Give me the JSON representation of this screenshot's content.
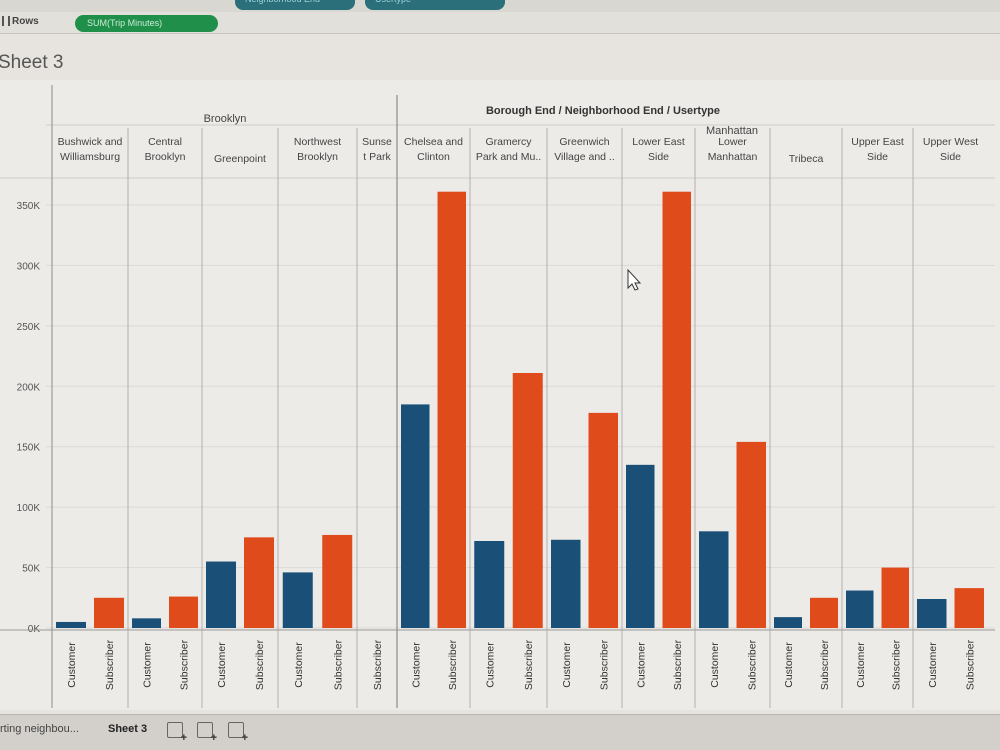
{
  "header": {
    "column_pills": [
      "Neighborhood End",
      "Usertype"
    ],
    "rows_label": "Rows",
    "rows_pill": "SUM(Trip Minutes)"
  },
  "sheet": {
    "title": "Sheet 3"
  },
  "colors": {
    "customer": "#1a4f78",
    "subscriber": "#e04b1c",
    "grid": "#dcdad6",
    "divider": "#8e8c88"
  },
  "chart_data": {
    "type": "bar",
    "title": "Borough End / Neighborhood End / Usertype",
    "ylim": [
      0,
      370000
    ],
    "yticks": [
      {
        "value": 0,
        "label": "0K"
      },
      {
        "value": 50000,
        "label": "50K"
      },
      {
        "value": 100000,
        "label": "100K"
      },
      {
        "value": 150000,
        "label": "150K"
      },
      {
        "value": 200000,
        "label": "200K"
      },
      {
        "value": 250000,
        "label": "250K"
      },
      {
        "value": 300000,
        "label": "300K"
      },
      {
        "value": 350000,
        "label": "350K"
      }
    ],
    "groups": [
      {
        "borough": "Brooklyn",
        "neighborhoods": [
          {
            "name": "Bushwick and Williamsburg",
            "lines": [
              "Bushwick and",
              "Williamsburg"
            ],
            "bars": [
              {
                "type": "Customer",
                "value": 5000
              },
              {
                "type": "Subscriber",
                "value": 25000
              }
            ]
          },
          {
            "name": "Central Brooklyn",
            "lines": [
              "Central",
              "Brooklyn"
            ],
            "bars": [
              {
                "type": "Customer",
                "value": 8000
              },
              {
                "type": "Subscriber",
                "value": 26000
              }
            ]
          },
          {
            "name": "Greenpoint",
            "lines": [
              "Greenpoint"
            ],
            "bars": [
              {
                "type": "Customer",
                "value": 55000
              },
              {
                "type": "Subscriber",
                "value": 75000
              }
            ]
          },
          {
            "name": "Northwest Brooklyn",
            "lines": [
              "Northwest",
              "Brooklyn"
            ],
            "bars": [
              {
                "type": "Customer",
                "value": 46000
              },
              {
                "type": "Subscriber",
                "value": 77000
              }
            ]
          },
          {
            "name": "Sunset Park",
            "lines": [
              "Sunse",
              "t Park"
            ],
            "bars": [
              {
                "type": "Subscriber",
                "value": 0
              }
            ]
          }
        ]
      },
      {
        "borough": "Manhattan",
        "neighborhoods": [
          {
            "name": "Chelsea and Clinton",
            "lines": [
              "Chelsea and",
              "Clinton"
            ],
            "bars": [
              {
                "type": "Customer",
                "value": 185000
              },
              {
                "type": "Subscriber",
                "value": 361000
              }
            ]
          },
          {
            "name": "Gramercy Park and Murray Hill",
            "lines": [
              "Gramercy",
              "Park and Mu.."
            ],
            "bars": [
              {
                "type": "Customer",
                "value": 72000
              },
              {
                "type": "Subscriber",
                "value": 211000
              }
            ]
          },
          {
            "name": "Greenwich Village and Soho",
            "lines": [
              "Greenwich",
              "Village and .."
            ],
            "bars": [
              {
                "type": "Customer",
                "value": 73000
              },
              {
                "type": "Subscriber",
                "value": 178000
              }
            ]
          },
          {
            "name": "Lower East Side",
            "lines": [
              "Lower East",
              "Side"
            ],
            "bars": [
              {
                "type": "Customer",
                "value": 135000
              },
              {
                "type": "Subscriber",
                "value": 361000
              }
            ]
          },
          {
            "name": "Lower Manhattan",
            "lines": [
              "Lower",
              "Manhattan"
            ],
            "bars": [
              {
                "type": "Customer",
                "value": 80000
              },
              {
                "type": "Subscriber",
                "value": 154000
              }
            ]
          },
          {
            "name": "Tribeca",
            "lines": [
              "Tribeca"
            ],
            "bars": [
              {
                "type": "Customer",
                "value": 9000
              },
              {
                "type": "Subscriber",
                "value": 25000
              }
            ]
          },
          {
            "name": "Upper East Side",
            "lines": [
              "Upper East",
              "Side"
            ],
            "bars": [
              {
                "type": "Customer",
                "value": 31000
              },
              {
                "type": "Subscriber",
                "value": 50000
              }
            ]
          },
          {
            "name": "Upper West Side",
            "lines": [
              "Upper West",
              "Side"
            ],
            "bars": [
              {
                "type": "Customer",
                "value": 24000
              },
              {
                "type": "Subscriber",
                "value": 33000
              }
            ]
          }
        ]
      }
    ]
  },
  "tabs": {
    "items": [
      "rting neighbou...",
      "Sheet 3"
    ],
    "active": "Sheet 3"
  }
}
